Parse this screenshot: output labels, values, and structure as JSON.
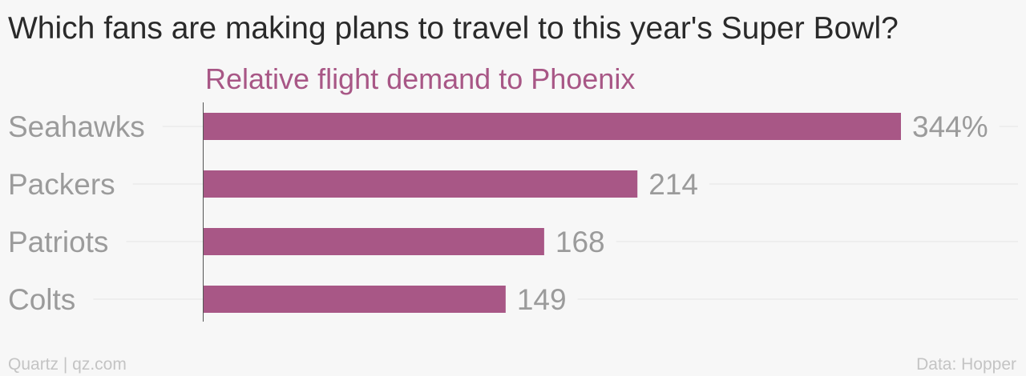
{
  "colors": {
    "bar": "#a85786",
    "subtitle": "#a85786",
    "category_label": "#9b9b9b",
    "value_label": "#9b9b9b",
    "gridline": "#e6e6e6",
    "axis": "#555555"
  },
  "footer": {
    "source_left": "Quartz | qz.com",
    "source_right": "Data: Hopper"
  },
  "chart_data": {
    "type": "bar",
    "orientation": "horizontal",
    "title": "Which fans are making plans to travel to this year's Super Bowl?",
    "subtitle": "Relative flight demand to Phoenix",
    "categories": [
      "Seahawks",
      "Packers",
      "Patriots",
      "Colts"
    ],
    "values": [
      344,
      214,
      168,
      149
    ],
    "value_labels": [
      "344%",
      "214",
      "168",
      "149"
    ],
    "xlim": [
      0,
      344
    ],
    "grid": true,
    "legend": "none"
  }
}
